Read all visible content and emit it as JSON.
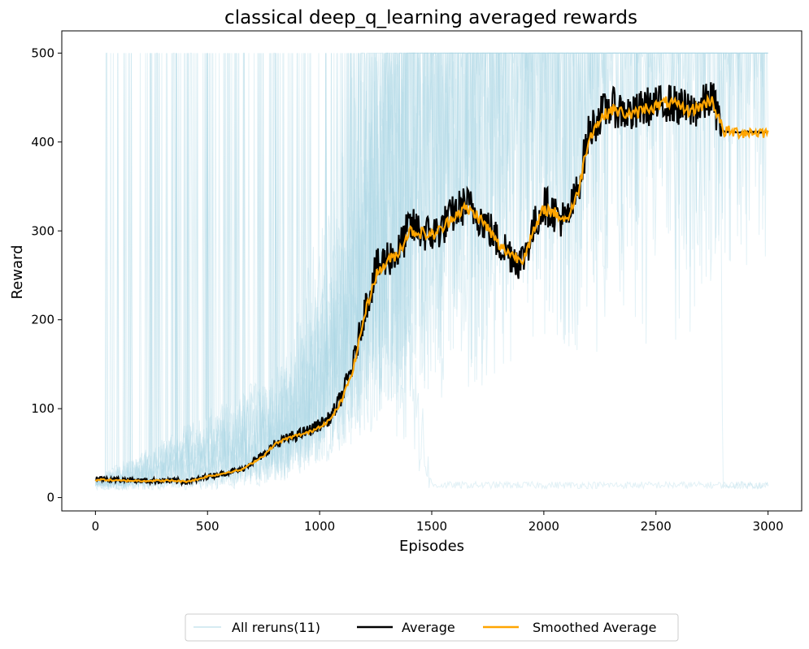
{
  "chart_data": {
    "type": "line",
    "title": "classical deep_q_learning averaged rewards",
    "xlabel": "Episodes",
    "ylabel": "Reward",
    "xlim": [
      -150,
      3150
    ],
    "ylim": [
      -15,
      525
    ],
    "xticks": [
      0,
      500,
      1000,
      1500,
      2000,
      2500,
      3000
    ],
    "yticks": [
      0,
      100,
      200,
      300,
      400,
      500
    ],
    "grid": false,
    "legend_position": "bottom-center",
    "colors": {
      "reruns": "#add8e6",
      "average": "#000000",
      "smoothed": "#ffa500"
    },
    "series": [
      {
        "name": "All reruns(11)",
        "style": "faint",
        "count": 11,
        "note_values_are_keypoints": true,
        "runs": [
          [
            [
              0,
              12
            ],
            [
              400,
              15
            ],
            [
              800,
              40
            ],
            [
              1100,
              120
            ],
            [
              1200,
              500
            ],
            [
              3000,
              500
            ]
          ],
          [
            [
              0,
              10
            ],
            [
              500,
              20
            ],
            [
              900,
              60
            ],
            [
              1300,
              300
            ],
            [
              1400,
              500
            ],
            [
              3000,
              500
            ]
          ],
          [
            [
              0,
              15
            ],
            [
              600,
              30
            ],
            [
              1000,
              120
            ],
            [
              1350,
              500
            ],
            [
              3000,
              500
            ]
          ],
          [
            [
              0,
              11
            ],
            [
              700,
              40
            ],
            [
              1150,
              200
            ],
            [
              1450,
              500
            ],
            [
              3000,
              500
            ]
          ],
          [
            [
              0,
              12
            ],
            [
              800,
              70
            ],
            [
              1250,
              300
            ],
            [
              1500,
              10
            ],
            [
              3000,
              10
            ]
          ],
          [
            [
              0,
              10
            ],
            [
              900,
              60
            ],
            [
              1300,
              250
            ],
            [
              1550,
              500
            ],
            [
              3000,
              500
            ]
          ],
          [
            [
              0,
              14
            ],
            [
              800,
              60
            ],
            [
              1200,
              200
            ],
            [
              1600,
              400
            ],
            [
              2000,
              500
            ],
            [
              3000,
              500
            ]
          ],
          [
            [
              0,
              11
            ],
            [
              850,
              80
            ],
            [
              1250,
              300
            ],
            [
              1700,
              500
            ],
            [
              3000,
              500
            ]
          ],
          [
            [
              0,
              12
            ],
            [
              900,
              90
            ],
            [
              1300,
              280
            ],
            [
              1950,
              500
            ],
            [
              3000,
              500
            ]
          ],
          [
            [
              0,
              10
            ],
            [
              1000,
              100
            ],
            [
              1400,
              350
            ],
            [
              2200,
              500
            ],
            [
              3000,
              500
            ]
          ],
          [
            [
              0,
              13
            ],
            [
              950,
              90
            ],
            [
              1350,
              250
            ],
            [
              2100,
              450
            ],
            [
              2780,
              500
            ],
            [
              2800,
              10
            ],
            [
              3000,
              10
            ]
          ]
        ]
      },
      {
        "name": "Average",
        "x": [
          0,
          50,
          100,
          150,
          200,
          250,
          300,
          350,
          400,
          450,
          500,
          550,
          600,
          650,
          700,
          750,
          800,
          850,
          900,
          950,
          1000,
          1050,
          1100,
          1150,
          1200,
          1250,
          1300,
          1350,
          1400,
          1450,
          1500,
          1550,
          1600,
          1650,
          1700,
          1750,
          1800,
          1850,
          1900,
          1950,
          2000,
          2050,
          2100,
          2150,
          2200,
          2250,
          2300,
          2350,
          2400,
          2450,
          2500,
          2550,
          2600,
          2650,
          2700,
          2750,
          2800,
          2850,
          2900,
          2950,
          3000
        ],
        "values": [
          22,
          21,
          20,
          20,
          19,
          19,
          19,
          19,
          18,
          20,
          24,
          26,
          29,
          31,
          40,
          48,
          60,
          66,
          70,
          75,
          82,
          90,
          115,
          150,
          210,
          255,
          270,
          275,
          305,
          300,
          295,
          305,
          320,
          330,
          320,
          305,
          285,
          275,
          265,
          300,
          330,
          320,
          310,
          345,
          410,
          430,
          440,
          435,
          430,
          440,
          440,
          445,
          440,
          435,
          440,
          450,
          412,
          411,
          411,
          411,
          411
        ]
      },
      {
        "name": "Smoothed Average",
        "x": [
          0,
          50,
          100,
          150,
          200,
          250,
          300,
          350,
          400,
          450,
          500,
          550,
          600,
          650,
          700,
          750,
          800,
          850,
          900,
          950,
          1000,
          1050,
          1100,
          1150,
          1200,
          1250,
          1300,
          1350,
          1400,
          1450,
          1500,
          1550,
          1600,
          1650,
          1700,
          1750,
          1800,
          1850,
          1900,
          1950,
          2000,
          2050,
          2100,
          2150,
          2200,
          2250,
          2300,
          2350,
          2400,
          2450,
          2500,
          2550,
          2600,
          2650,
          2700,
          2750,
          2800,
          2850,
          2900,
          2950,
          3000
        ],
        "values": [
          20,
          20,
          19,
          19,
          19,
          19,
          19,
          19,
          18,
          20,
          24,
          26,
          29,
          31,
          39,
          47,
          60,
          66,
          70,
          73,
          80,
          88,
          110,
          145,
          205,
          250,
          265,
          275,
          300,
          298,
          295,
          303,
          318,
          325,
          318,
          303,
          283,
          275,
          267,
          295,
          325,
          320,
          312,
          340,
          405,
          425,
          437,
          433,
          430,
          438,
          440,
          445,
          440,
          435,
          440,
          448,
          412,
          411,
          411,
          411,
          411
        ]
      }
    ]
  }
}
